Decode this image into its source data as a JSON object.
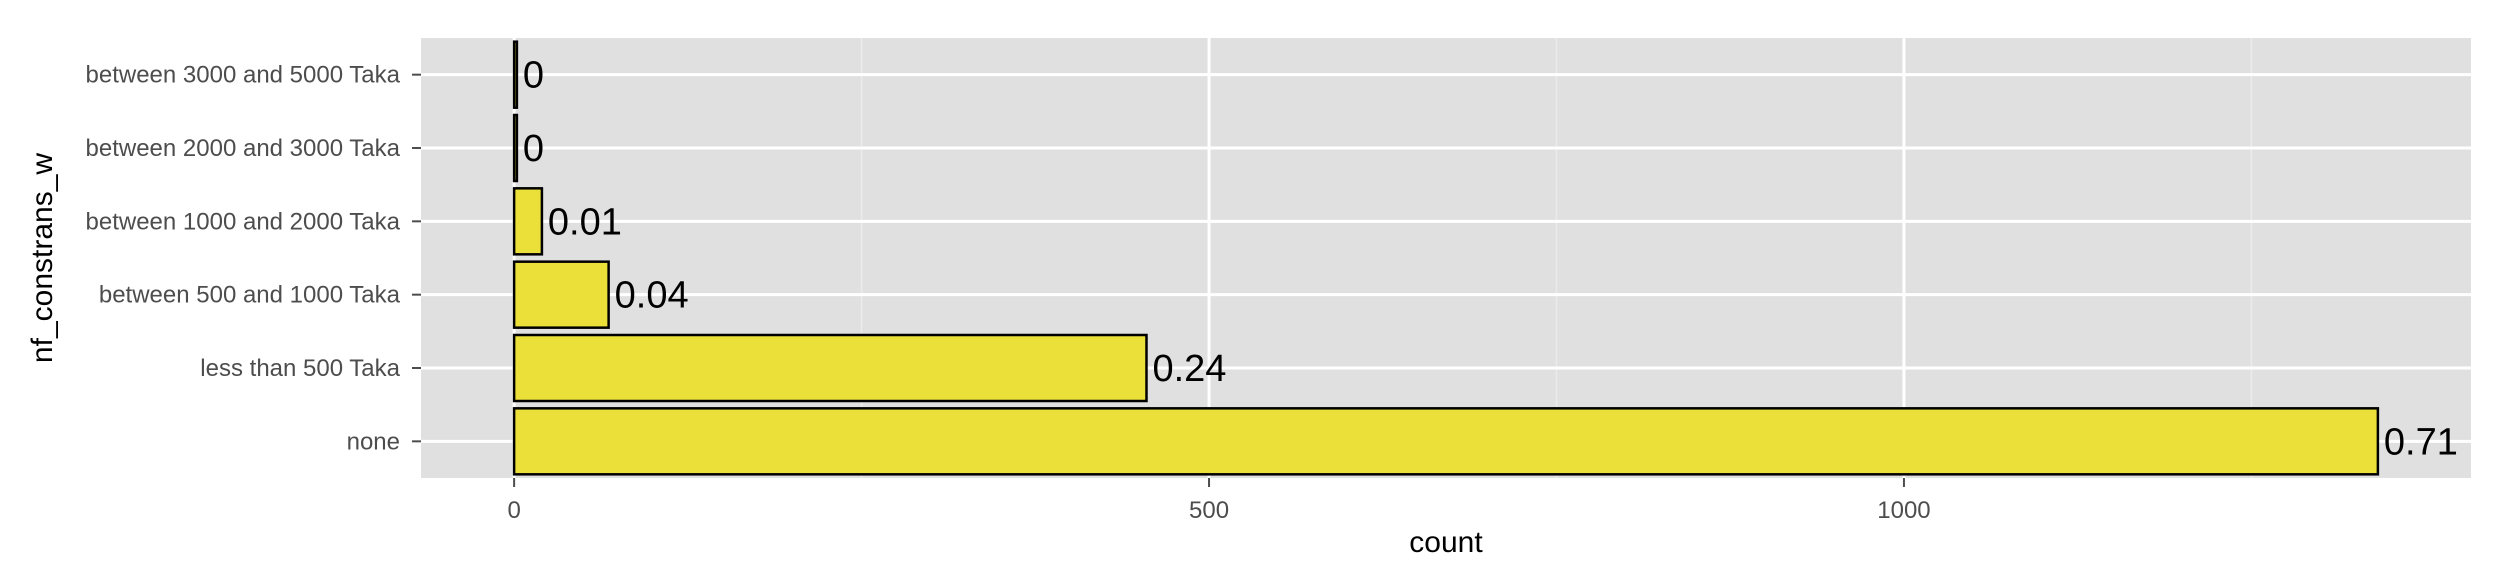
{
  "chart_data": {
    "type": "bar",
    "orientation": "horizontal",
    "xlabel": "count",
    "ylabel": "nf_constrans_w",
    "categories": [
      "none",
      "less than 500 Taka",
      "between 500 and 1000 Taka",
      "between 1000 and 2000 Taka",
      "between 2000 and 3000 Taka",
      "between 3000 and 5000 Taka"
    ],
    "values": [
      1341,
      455,
      68,
      20,
      2,
      2
    ],
    "data_labels": [
      "0.71",
      "0.24",
      "0.04",
      "0.01",
      "0",
      "0"
    ],
    "x_ticks": [
      0,
      500,
      1000
    ],
    "x_tick_labels": [
      "0",
      "500",
      "1000"
    ],
    "xlim": [
      -67,
      1408
    ],
    "grid": true,
    "legend": "none",
    "colors": {
      "bar_fill": "#ebe03a",
      "bar_stroke": "#000000",
      "panel_bg": "#e0e0e0",
      "grid_major": "#ffffff",
      "grid_minor": "#ebebeb",
      "tick_text": "#4d4d4d"
    }
  }
}
